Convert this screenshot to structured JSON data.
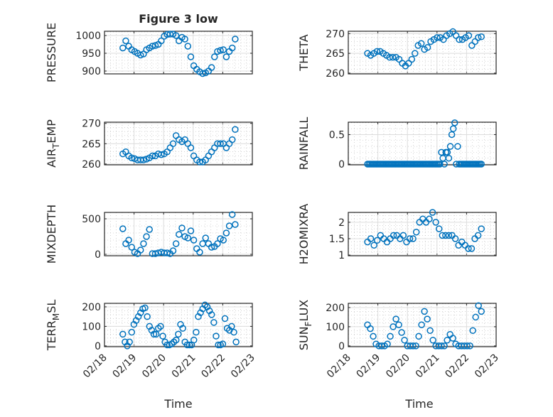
{
  "figure_title": "Figure 3 low",
  "chart_data": [
    {
      "type": "scatter",
      "ylabel": [
        "PRESSURE"
      ],
      "ylim": [
        892,
        1012
      ],
      "yticks": [
        900,
        950,
        1000
      ],
      "xlim": [
        0,
        5
      ],
      "x_start": 0.62,
      "x_end": 4.42,
      "values": [
        965,
        985,
        970,
        960,
        955,
        950,
        945,
        948,
        960,
        965,
        970,
        972,
        975,
        985,
        998,
        1003,
        1004,
        1004,
        1000,
        985,
        995,
        990,
        970,
        940,
        915,
        905,
        898,
        893,
        895,
        900,
        910,
        940,
        955,
        958,
        960,
        940,
        955,
        965,
        990
      ]
    },
    {
      "type": "scatter",
      "ylabel": [
        "THETA"
      ],
      "ylim": [
        259.8,
        270.6
      ],
      "yticks": [
        260,
        265,
        270
      ],
      "xlim": [
        0,
        5
      ],
      "x_start": 0.65,
      "x_end": 4.5,
      "values": [
        265,
        264.5,
        265,
        265.5,
        265.5,
        265,
        264.5,
        264,
        264,
        264,
        263.5,
        262.5,
        261.8,
        262.5,
        263.5,
        265,
        267,
        267.5,
        266,
        266.5,
        268,
        268.5,
        269,
        269,
        268.5,
        269.5,
        270,
        270.5,
        269.5,
        268.5,
        268.5,
        269,
        269.5,
        267,
        268,
        269,
        269.2
      ]
    },
    {
      "type": "scatter",
      "ylabel": [
        "AIR",
        "T",
        "EMP"
      ],
      "ylim": [
        259.8,
        270.3
      ],
      "yticks": [
        260,
        265,
        270
      ],
      "xlim": [
        0,
        5
      ],
      "x_start": 0.62,
      "x_end": 4.42,
      "values": [
        262.5,
        263,
        262,
        261.5,
        261.3,
        261,
        261,
        261,
        261.2,
        261.5,
        262,
        262,
        262.5,
        262.3,
        262.5,
        263,
        264,
        265,
        267,
        266,
        265.5,
        266,
        265,
        264,
        262,
        261,
        260.5,
        260.5,
        261,
        262,
        263,
        264,
        265,
        265,
        265,
        264,
        265,
        266,
        268.5
      ]
    },
    {
      "type": "scatter",
      "ylabel": [
        "RAINFALL"
      ],
      "ylim": [
        -0.012,
        0.71
      ],
      "yticks": [
        0,
        0.5
      ],
      "xlim": [
        0,
        5
      ],
      "x_start": 0.65,
      "x_end": 4.5,
      "values": [
        0,
        0,
        0,
        0,
        0,
        0,
        0,
        0,
        0,
        0,
        0,
        0,
        0,
        0,
        0,
        0,
        0,
        0,
        0,
        0,
        0,
        0,
        0,
        0,
        0,
        0,
        0,
        0,
        0,
        0,
        0,
        0,
        0,
        0,
        0,
        0,
        0,
        0,
        0,
        0,
        0,
        0,
        0,
        0,
        0,
        0,
        0,
        0,
        0,
        0,
        0.2,
        0.1,
        0,
        0.2,
        0.2,
        0.1,
        0.3,
        0.5,
        0.6,
        0.7,
        0,
        0.3,
        0,
        0,
        0,
        0,
        0,
        0,
        0,
        0,
        0,
        0,
        0,
        0,
        0,
        0,
        0,
        0
      ]
    },
    {
      "type": "scatter",
      "ylabel": [
        "MIXDEPTH"
      ],
      "ylim": [
        -20,
        590
      ],
      "yticks": [
        0,
        500
      ],
      "xlim": [
        0,
        5
      ],
      "x_start": 0.62,
      "x_end": 4.42,
      "values": [
        360,
        150,
        200,
        100,
        30,
        10,
        60,
        150,
        250,
        350,
        10,
        10,
        20,
        30,
        20,
        20,
        10,
        50,
        150,
        280,
        370,
        250,
        230,
        330,
        200,
        80,
        30,
        150,
        230,
        150,
        100,
        110,
        150,
        220,
        200,
        300,
        400,
        560,
        420
      ]
    },
    {
      "type": "scatter",
      "ylabel": [
        "H2OMIXRA"
      ],
      "ylim": [
        0.98,
        2.3
      ],
      "yticks": [
        1,
        1.5,
        2
      ],
      "xlim": [
        0,
        5
      ],
      "x_start": 0.65,
      "x_end": 4.5,
      "values": [
        1.4,
        1.5,
        1.3,
        1.45,
        1.6,
        1.5,
        1.4,
        1.5,
        1.6,
        1.6,
        1.5,
        1.6,
        1.4,
        1.5,
        1.5,
        1.7,
        2.0,
        2.1,
        2.0,
        2.1,
        2.3,
        2.0,
        1.8,
        1.6,
        1.6,
        1.6,
        1.6,
        1.5,
        1.3,
        1.4,
        1.3,
        1.2,
        1.2,
        1.5,
        1.6,
        1.8
      ]
    },
    {
      "type": "scatter",
      "ylabel": [
        "TERR",
        "M",
        "SL"
      ],
      "xlabel": "Time",
      "ylim": [
        -4,
        218
      ],
      "yticks": [
        0,
        100,
        200
      ],
      "xlim": [
        0,
        5
      ],
      "xticklabels": [
        "02/18",
        "02/19",
        "02/20",
        "02/21",
        "02/22",
        "02/23"
      ],
      "x_start": 0.62,
      "x_end": 4.45,
      "values": [
        60,
        20,
        0,
        20,
        70,
        110,
        130,
        150,
        170,
        190,
        195,
        150,
        100,
        80,
        60,
        60,
        90,
        100,
        50,
        20,
        5,
        5,
        10,
        20,
        30,
        60,
        110,
        90,
        20,
        5,
        5,
        5,
        30,
        70,
        150,
        170,
        190,
        210,
        200,
        180,
        160,
        120,
        50,
        5,
        5,
        10,
        140,
        90,
        80,
        100,
        70,
        20
      ]
    },
    {
      "type": "scatter",
      "ylabel": [
        "SUN",
        "F",
        "LUX"
      ],
      "xlabel": "Time",
      "ylim": [
        -4,
        222
      ],
      "yticks": [
        0,
        100,
        200
      ],
      "xlim": [
        0,
        5
      ],
      "xticklabels": [
        "02/18",
        "02/19",
        "02/20",
        "02/21",
        "02/22",
        "02/23"
      ],
      "x_start": 0.65,
      "x_end": 4.5,
      "values": [
        110,
        90,
        50,
        10,
        0,
        0,
        0,
        10,
        50,
        100,
        140,
        110,
        70,
        30,
        0,
        0,
        0,
        0,
        50,
        110,
        180,
        140,
        80,
        30,
        0,
        0,
        0,
        0,
        30,
        60,
        40,
        10,
        0,
        0,
        0,
        0,
        0,
        80,
        150,
        210,
        180
      ]
    }
  ],
  "colors": {
    "marker": "#0072BD",
    "axis": "#262626",
    "grid": "#dcdcdc",
    "minor": "#b8b8b8"
  }
}
